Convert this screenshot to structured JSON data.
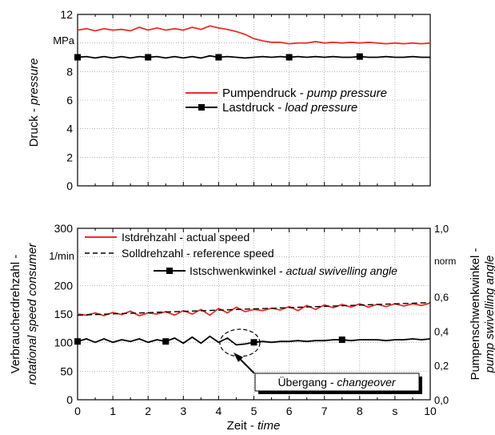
{
  "colors": {
    "red": "#e8302c",
    "black": "#000000",
    "grid": "#8a8a8a"
  },
  "chart_data": [
    {
      "type": "line",
      "ylabel_de": "Druck - ",
      "ylabel_en": "pressure",
      "y_unit": "MPa",
      "ylim": [
        0,
        12
      ],
      "yticks": [
        "0",
        "2",
        "4",
        "6",
        "8",
        "10",
        "12"
      ],
      "xlim": [
        0,
        10
      ],
      "grid": true,
      "legend_position": "middle-right",
      "series": [
        {
          "name_de": "Pumpendruck - ",
          "name_en": "pump pressure",
          "color": "#e8302c",
          "marker": "none",
          "x": [
            0,
            0.25,
            0.5,
            0.75,
            1,
            1.25,
            1.5,
            1.75,
            2,
            2.25,
            2.5,
            2.75,
            3,
            3.25,
            3.5,
            3.75,
            4,
            4.25,
            4.5,
            4.75,
            5,
            5.25,
            5.5,
            5.75,
            6,
            6.25,
            6.5,
            6.75,
            7,
            7.25,
            7.5,
            7.75,
            8,
            8.25,
            8.5,
            8.75,
            9,
            9.25,
            9.5,
            9.75,
            10
          ],
          "y": [
            10.9,
            11.0,
            10.85,
            11.0,
            10.9,
            10.95,
            10.85,
            11.1,
            10.9,
            11.05,
            10.9,
            11.0,
            10.9,
            11.1,
            10.95,
            11.2,
            11.05,
            10.95,
            10.8,
            10.6,
            10.3,
            10.15,
            10.05,
            10.05,
            9.95,
            10.0,
            10.0,
            10.1,
            10.0,
            10.05,
            10.0,
            10.05,
            10.0,
            10.05,
            10.0,
            9.95,
            10.0,
            9.95,
            10.0,
            9.95,
            10.0
          ]
        },
        {
          "name_de": "Lastdruck - ",
          "name_en": "load pressure",
          "color": "#000000",
          "marker": "square",
          "marker_x": [
            0,
            2,
            4,
            6,
            8
          ],
          "x": [
            0,
            0.25,
            0.5,
            0.75,
            1,
            1.25,
            1.5,
            1.75,
            2,
            2.25,
            2.5,
            2.75,
            3,
            3.25,
            3.5,
            3.75,
            4,
            4.25,
            4.5,
            4.75,
            5,
            5.25,
            5.5,
            5.75,
            6,
            6.25,
            6.5,
            6.75,
            7,
            7.25,
            7.5,
            7.75,
            8,
            8.25,
            8.5,
            8.75,
            9,
            9.25,
            9.5,
            9.75,
            10
          ],
          "y": [
            9.0,
            9.05,
            8.95,
            9.05,
            8.95,
            9.05,
            8.95,
            9.05,
            9.0,
            9.05,
            8.95,
            9.05,
            8.95,
            9.05,
            8.95,
            9.1,
            9.0,
            9.05,
            9.0,
            8.95,
            9.0,
            9.05,
            9.0,
            9.05,
            9.0,
            9.05,
            9.0,
            9.05,
            9.0,
            9.05,
            9.0,
            9.0,
            9.05,
            9.0,
            9.0,
            9.05,
            9.0,
            9.0,
            9.05,
            9.0,
            9.0
          ]
        }
      ]
    },
    {
      "type": "line",
      "ylabel_de": "Verbraucherdrehzahl -",
      "ylabel_en": "rotational speed consumer",
      "y_unit": "1/min",
      "ylim": [
        0,
        300
      ],
      "yticks": [
        "0",
        "50",
        "100",
        "150",
        "200",
        "250",
        "300"
      ],
      "y2label_de": "Pumpenschwenkwinkel -",
      "y2label_en": "pump swivelling angle",
      "y2_unit": "norm",
      "y2lim": [
        0,
        1
      ],
      "y2ticks": [
        "0,0",
        "0,2",
        "0,4",
        "0,6",
        "0,8",
        "1,0"
      ],
      "xlabel_de": "Zeit - ",
      "xlabel_en": "time",
      "x_unit": "s",
      "xlim": [
        0,
        10
      ],
      "xticks": [
        "0",
        "1",
        "2",
        "3",
        "4",
        "5",
        "6",
        "7",
        "8",
        "s",
        "10"
      ],
      "grid": true,
      "legend_position": "top",
      "series": [
        {
          "name_de": "Istdrehzahl - ",
          "name_en": "actual speed",
          "color": "#e8302c",
          "style": "solid",
          "axis": "left",
          "x": [
            0,
            0.25,
            0.5,
            0.75,
            1,
            1.25,
            1.5,
            1.75,
            2,
            2.25,
            2.5,
            2.75,
            3,
            3.25,
            3.5,
            3.75,
            4,
            4.25,
            4.5,
            4.75,
            5,
            5.25,
            5.5,
            5.75,
            6,
            6.25,
            6.5,
            6.75,
            7,
            7.25,
            7.5,
            7.75,
            8,
            8.25,
            8.5,
            8.75,
            9,
            9.25,
            9.5,
            9.75,
            10
          ],
          "y": [
            150,
            148,
            152,
            147,
            153,
            149,
            155,
            147,
            152,
            150,
            154,
            148,
            156,
            150,
            158,
            148,
            160,
            152,
            162,
            154,
            158,
            156,
            160,
            157,
            163,
            156,
            165,
            158,
            166,
            161,
            167,
            162,
            168,
            162,
            167,
            163,
            168,
            164,
            168,
            165,
            169
          ]
        },
        {
          "name_de": "Solldrehzahl - ",
          "name_en": "reference speed",
          "color": "#000000",
          "style": "dashed",
          "axis": "left",
          "x": [
            0,
            10
          ],
          "y": [
            148,
            170
          ]
        },
        {
          "name_de": "Istschwenkwinkel - ",
          "name_en": "actual swivelling angle",
          "color": "#000000",
          "style": "solid",
          "marker": "square",
          "axis": "right",
          "marker_x": [
            0,
            2.5,
            5,
            7.5
          ],
          "x": [
            0,
            0.25,
            0.5,
            0.75,
            1,
            1.25,
            1.5,
            1.75,
            2,
            2.25,
            2.5,
            2.75,
            3,
            3.25,
            3.5,
            3.75,
            4,
            4.25,
            4.5,
            4.75,
            5,
            5.25,
            5.5,
            5.75,
            6,
            6.25,
            6.5,
            6.75,
            7,
            7.25,
            7.5,
            7.75,
            8,
            8.25,
            8.5,
            8.75,
            9,
            9.25,
            9.5,
            9.75,
            10
          ],
          "y": [
            0.34,
            0.355,
            0.335,
            0.355,
            0.335,
            0.35,
            0.34,
            0.355,
            0.335,
            0.35,
            0.34,
            0.36,
            0.33,
            0.365,
            0.33,
            0.37,
            0.335,
            0.36,
            0.32,
            0.325,
            0.335,
            0.34,
            0.335,
            0.34,
            0.34,
            0.345,
            0.34,
            0.345,
            0.345,
            0.35,
            0.35,
            0.345,
            0.35,
            0.35,
            0.35,
            0.345,
            0.35,
            0.35,
            0.355,
            0.35,
            0.355
          ]
        }
      ],
      "annotation": {
        "text_de": "Übergang - ",
        "text_en": "changeover",
        "target_x": 4.6,
        "target_y": 105
      }
    }
  ]
}
